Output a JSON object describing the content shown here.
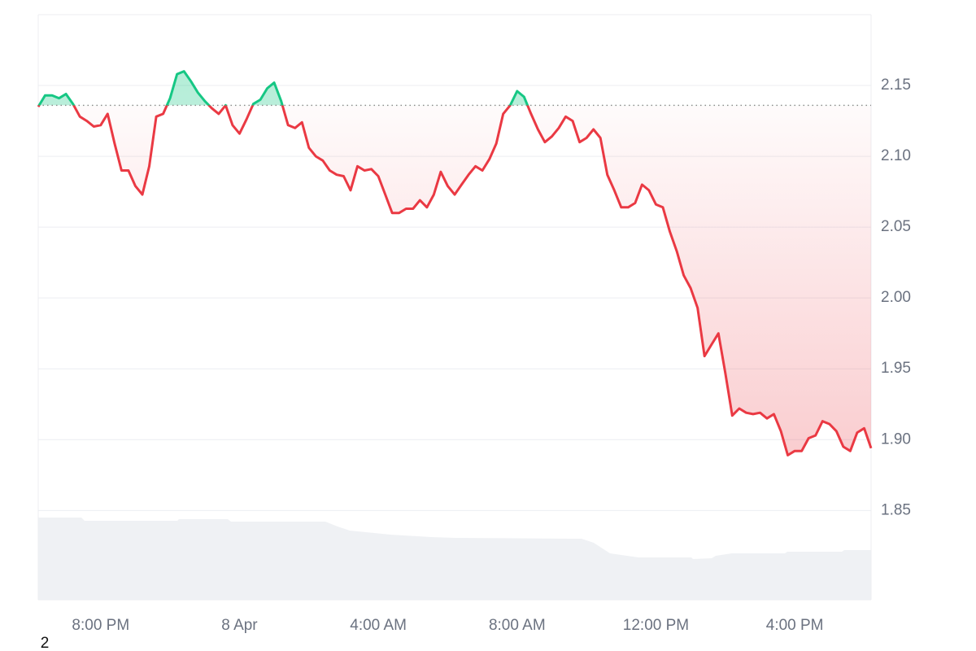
{
  "chart_data": {
    "type": "line",
    "note": "2",
    "categories": [
      null,
      null,
      null,
      null,
      null,
      null,
      null,
      null,
      null,
      "8:00 PM",
      null,
      null,
      null,
      null,
      null,
      null,
      null,
      null,
      null,
      null,
      null,
      null,
      null,
      null,
      null,
      null,
      null,
      null,
      null,
      "8 Apr",
      null,
      null,
      null,
      null,
      null,
      null,
      null,
      null,
      null,
      null,
      null,
      null,
      null,
      null,
      null,
      null,
      null,
      null,
      null,
      "4:00 AM",
      null,
      null,
      null,
      null,
      null,
      null,
      null,
      null,
      null,
      null,
      null,
      null,
      null,
      null,
      null,
      null,
      null,
      null,
      null,
      "8:00 AM",
      null,
      null,
      null,
      null,
      null,
      null,
      null,
      null,
      null,
      null,
      null,
      null,
      null,
      null,
      null,
      null,
      null,
      null,
      null,
      "12:00 PM",
      null,
      null,
      null,
      null,
      null,
      null,
      null,
      null,
      null,
      null,
      null,
      null,
      null,
      null,
      null,
      null,
      null,
      null,
      null,
      "4:00 PM",
      null,
      null,
      null,
      null,
      null,
      null,
      null,
      null,
      null,
      null,
      null
    ],
    "values": [
      2.135,
      2.143,
      2.143,
      2.141,
      2.144,
      2.137,
      2.128,
      2.125,
      2.121,
      2.122,
      2.13,
      2.109,
      2.09,
      2.09,
      2.079,
      2.073,
      2.093,
      2.128,
      2.13,
      2.141,
      2.158,
      2.16,
      2.153,
      2.145,
      2.139,
      2.134,
      2.13,
      2.136,
      2.122,
      2.116,
      2.126,
      2.137,
      2.14,
      2.148,
      2.152,
      2.139,
      2.122,
      2.12,
      2.124,
      2.106,
      2.1,
      2.097,
      2.09,
      2.087,
      2.086,
      2.076,
      2.093,
      2.09,
      2.091,
      2.086,
      2.073,
      2.06,
      2.06,
      2.063,
      2.063,
      2.069,
      2.064,
      2.073,
      2.089,
      2.079,
      2.073,
      2.08,
      2.087,
      2.093,
      2.09,
      2.098,
      2.109,
      2.13,
      2.136,
      2.146,
      2.142,
      2.13,
      2.119,
      2.11,
      2.114,
      2.12,
      2.128,
      2.125,
      2.11,
      2.113,
      2.119,
      2.113,
      2.087,
      2.076,
      2.064,
      2.064,
      2.067,
      2.08,
      2.076,
      2.066,
      2.064,
      2.047,
      2.033,
      2.016,
      2.007,
      1.993,
      1.959,
      1.967,
      1.975,
      1.947,
      1.917,
      1.922,
      1.919,
      1.918,
      1.919,
      1.915,
      1.918,
      1.906,
      1.889,
      1.892,
      1.892,
      1.901,
      1.903,
      1.913,
      1.911,
      1.906,
      1.895,
      1.892,
      1.905,
      1.908,
      1.894
    ],
    "baseline": 2.136,
    "up_color": "#16c784",
    "down_color": "#ea3943",
    "ylim": [
      1.787,
      2.2
    ],
    "yticks": [
      1.85,
      {
        "value": 1.9,
        "label": "1.90"
      },
      1.95,
      {
        "value": 2,
        "label": "2.00"
      },
      2.05,
      {
        "value": 2.1,
        "label": "2.10"
      },
      2.15
    ],
    "grid": true
  }
}
